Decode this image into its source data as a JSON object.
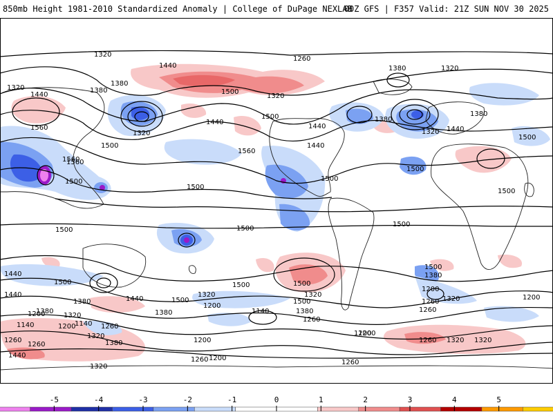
{
  "header": {
    "title": "850mb Height 1981-2010 Standardized Anomaly | College of DuPage NEXLAB",
    "run": "00Z GFS | F357 Valid: 21Z SUN NOV 30 2025"
  },
  "legend": {
    "colors": [
      "#ee80ee",
      "#9a1ac8",
      "#1f2fa6",
      "#3c5fe6",
      "#7ba1f2",
      "#c9dcfa",
      "#ffffff",
      "#ffffff",
      "#f8c8c8",
      "#f08c8c",
      "#e05050",
      "#b40000",
      "#ff9a00",
      "#ffcc00"
    ],
    "ticks": [
      "-5",
      "-4",
      "-3",
      "-2",
      "-1",
      "0",
      "1",
      "2",
      "3",
      "4",
      "5"
    ]
  },
  "contour_labels": [
    "1320",
    "1260",
    "1440",
    "1380",
    "1320",
    "1320",
    "1440",
    "1380",
    "1380",
    "1500",
    "1560",
    "1500",
    "1440",
    "1320",
    "1560",
    "1320",
    "1440",
    "1500",
    "1560",
    "1500",
    "1500",
    "1500",
    "1440",
    "1380",
    "1320",
    "1440",
    "1380",
    "1500",
    "1500",
    "1500",
    "1560",
    "1500",
    "1500",
    "1500",
    "1500",
    "1500",
    "1500",
    "1440",
    "1380",
    "1500",
    "1380",
    "1440",
    "1500",
    "1380",
    "1320",
    "1260",
    "1200",
    "1200",
    "1140",
    "1140",
    "1200",
    "1260",
    "1260",
    "1320",
    "1380",
    "1440",
    "1500",
    "1380",
    "1320",
    "1200",
    "1260",
    "1200",
    "1200",
    "1260",
    "1320",
    "1260",
    "1320",
    "1260",
    "1200",
    "1140",
    "1200",
    "1260",
    "1320",
    "1440",
    "1380",
    "1320",
    "1260",
    "1200",
    "1320"
  ]
}
